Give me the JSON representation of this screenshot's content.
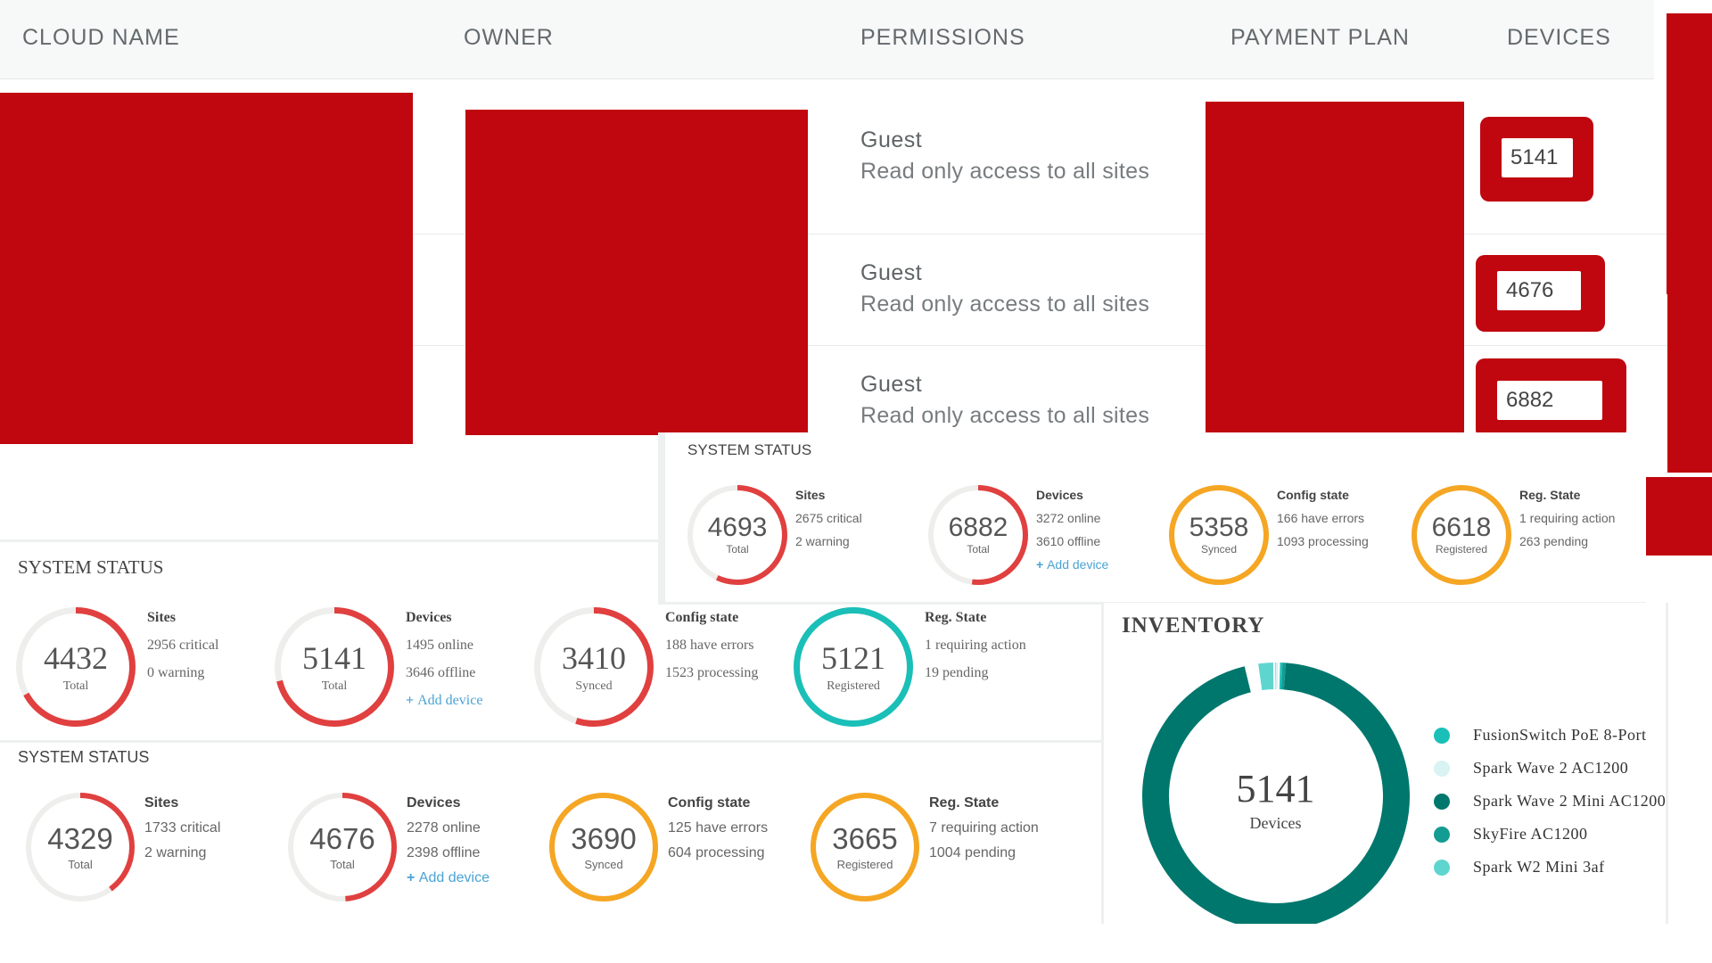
{
  "table": {
    "headers": [
      "CLOUD NAME",
      "OWNER",
      "PERMISSIONS",
      "PAYMENT PLAN",
      "DEVICES"
    ],
    "rows": [
      {
        "permission_title": "Guest",
        "permission_desc": "Read only access to all sites",
        "devices": "5141"
      },
      {
        "permission_title": "Guest",
        "permission_desc": "Read only access to all sites",
        "devices": "4676"
      },
      {
        "permission_title": "Guest",
        "permission_desc": "Read only access to all sites",
        "devices": "6882"
      }
    ]
  },
  "status_top": {
    "title": "SYSTEM STATUS",
    "cards": [
      {
        "value": "4693",
        "sub": "Total",
        "heading": "Sites",
        "lines": [
          "2675 critical",
          "2 warning"
        ],
        "color": "#e0403f",
        "fraction": 0.57
      },
      {
        "value": "6882",
        "sub": "Total",
        "heading": "Devices",
        "lines": [
          "3272 online",
          "3610 offline"
        ],
        "link": "Add device",
        "color": "#e0403f",
        "fraction": 0.52
      },
      {
        "value": "5358",
        "sub": "Synced",
        "heading": "Config state",
        "lines": [
          "166 have errors",
          "1093 processing"
        ],
        "color": "#f5a623",
        "fraction": 1.0
      },
      {
        "value": "6618",
        "sub": "Registered",
        "heading": "Reg. State",
        "lines": [
          "1 requiring action",
          "263 pending"
        ],
        "color": "#f5a623",
        "fraction": 1.0
      }
    ]
  },
  "status_mid": {
    "title": "SYSTEM STATUS",
    "cards": [
      {
        "value": "4432",
        "sub": "Total",
        "heading": "Sites",
        "lines": [
          "2956 critical",
          "0 warning"
        ],
        "color": "#e0403f",
        "fraction": 0.67
      },
      {
        "value": "5141",
        "sub": "Total",
        "heading": "Devices",
        "lines": [
          "1495 online",
          "3646 offline"
        ],
        "link": "Add device",
        "color": "#e0403f",
        "fraction": 0.71
      },
      {
        "value": "3410",
        "sub": "Synced",
        "heading": "Config state",
        "lines": [
          "188 have errors",
          "1523 processing"
        ],
        "color": "#e0403f",
        "fraction": 0.55
      },
      {
        "value": "5121",
        "sub": "Registered",
        "heading": "Reg. State",
        "lines": [
          "1 requiring action",
          "19 pending"
        ],
        "color": "#1abfb8",
        "fraction": 1.0
      }
    ]
  },
  "status_bottom": {
    "title": "SYSTEM STATUS",
    "cards": [
      {
        "value": "4329",
        "sub": "Total",
        "heading": "Sites",
        "lines": [
          "1733 critical",
          "2 warning"
        ],
        "color": "#e0403f",
        "fraction": 0.4
      },
      {
        "value": "4676",
        "sub": "Total",
        "heading": "Devices",
        "lines": [
          "2278 online",
          "2398 offline"
        ],
        "link": "Add device",
        "color": "#e0403f",
        "fraction": 0.49
      },
      {
        "value": "3690",
        "sub": "Synced",
        "heading": "Config state",
        "lines": [
          "125 have errors",
          "604 processing"
        ],
        "color": "#f5a623",
        "fraction": 1.0
      },
      {
        "value": "3665",
        "sub": "Registered",
        "heading": "Reg. State",
        "lines": [
          "7 requiring action",
          "1004 pending"
        ],
        "color": "#f5a623",
        "fraction": 1.0
      }
    ]
  },
  "inventory": {
    "title": "INVENTORY",
    "total": "5141",
    "total_label": "Devices",
    "segments": [
      {
        "name": "FusionSwitch PoE 8-Port",
        "color": "#1abfb8",
        "fraction": 0.004
      },
      {
        "name": "Spark Wave 2 AC1200",
        "color": "#d8f3f1",
        "fraction": 0.004
      },
      {
        "name": "Spark Wave 2 Mini AC1200",
        "color": "#00776d",
        "fraction": 0.95
      },
      {
        "name": "SkyFire AC1200",
        "color": "#139c92",
        "fraction": 0.004
      },
      {
        "name": "Spark W2 Mini 3af",
        "color": "#5ed6cf",
        "fraction": 0.022
      }
    ]
  }
}
